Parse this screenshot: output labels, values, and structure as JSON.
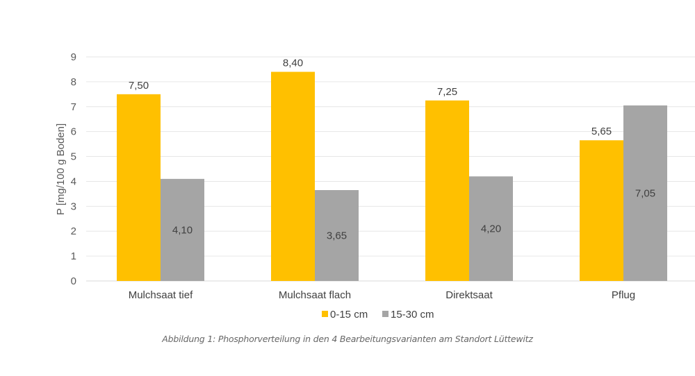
{
  "chart_data": {
    "type": "bar",
    "title": "",
    "xlabel": "",
    "ylabel": "P [mg/100 g Boden]",
    "ylim": [
      0,
      9
    ],
    "yticks": [
      "0",
      "1",
      "2",
      "3",
      "4",
      "5",
      "6",
      "7",
      "8",
      "9"
    ],
    "grid": true,
    "legend_position": "bottom",
    "categories": [
      "Mulchsaat tief",
      "Mulchsaat flach",
      "Direktsaat",
      "Pflug"
    ],
    "series": [
      {
        "name": "0-15 cm",
        "color": "#FFC000",
        "values": [
          7.5,
          8.4,
          7.25,
          5.65
        ],
        "labels": [
          "7,50",
          "8,40",
          "7,25",
          "5,65"
        ],
        "label_position": "outside-end"
      },
      {
        "name": "15-30 cm",
        "color": "#A5A5A5",
        "values": [
          4.1,
          3.65,
          4.2,
          7.05
        ],
        "labels": [
          "4,10",
          "3,65",
          "4,20",
          "7,05"
        ],
        "label_position": "center"
      }
    ]
  },
  "caption": "Abbildung 1: Phosphorverteilung in den 4 Bearbeitungsvarianten am Standort Lüttewitz"
}
